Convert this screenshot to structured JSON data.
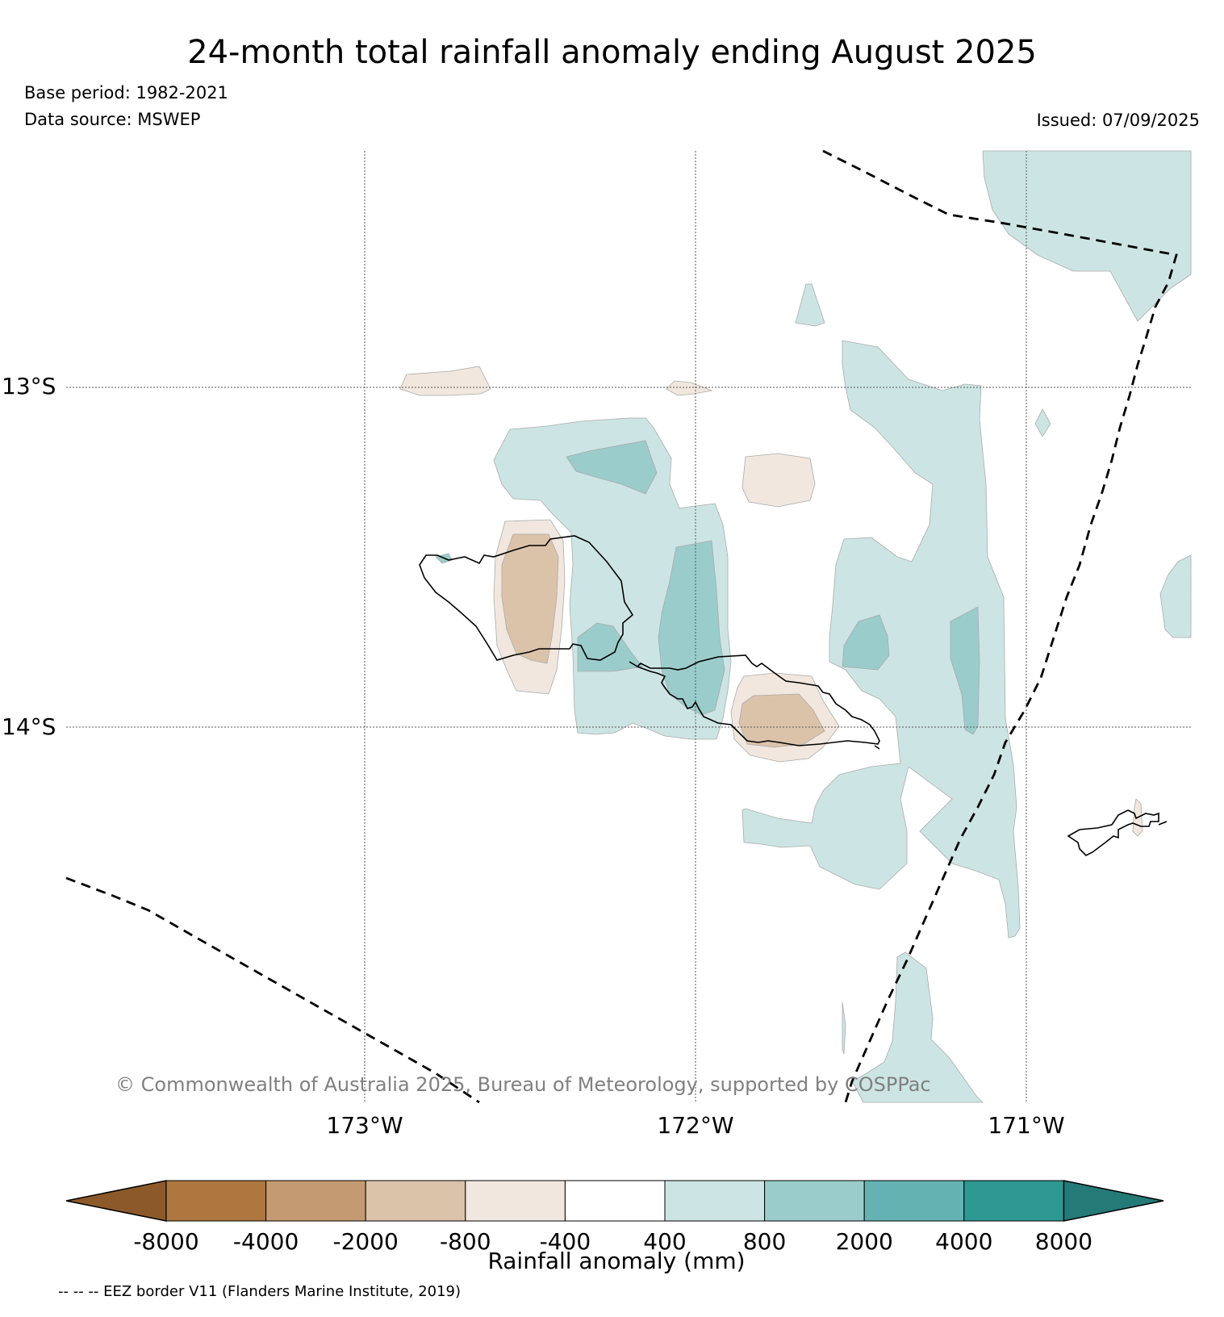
{
  "title": "24-month total rainfall anomaly ending August 2025",
  "base_period": "Base period: 1982-2021",
  "data_source": "Data source: MSWEP",
  "issued": "Issued: 07/09/2025",
  "latitude_labels": [
    "13°S",
    "14°S"
  ],
  "longitude_labels": [
    "173°W",
    "172°W",
    "171°W"
  ],
  "copyright": "© Commonwealth of Australia 2025, Bureau of Meteorology, supported by COSPPac",
  "colorbar": {
    "title": "Rainfall anomaly (mm)",
    "tick_labels": [
      "-8000",
      "-4000",
      "-2000",
      "-800",
      "-400",
      "400",
      "800",
      "2000",
      "4000",
      "8000"
    ],
    "colors": [
      "#8c5a2a",
      "#ad773f",
      "#c49a72",
      "#dbc3aa",
      "#f1e7de",
      "#ffffff",
      "#cce5e4",
      "#9acccb",
      "#64b3b2",
      "#2e9892",
      "#247a76"
    ]
  },
  "legend_note": "-- -- -- EEZ border V11 (Flanders Marine Institute, 2019)",
  "colors": {
    "dry_light": "#f1e7de",
    "dry_medium": "#dbc3aa",
    "wet_light": "#cce5e4",
    "wet_medium": "#9acccb"
  }
}
